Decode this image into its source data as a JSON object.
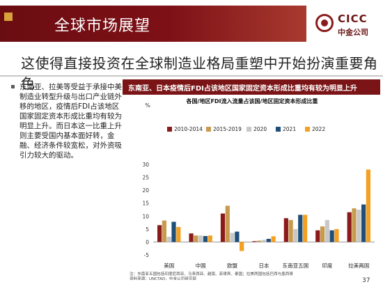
{
  "header": {
    "title": "全球市场展望",
    "logo_en": "CICC",
    "logo_cn": "中金公司"
  },
  "subtitle": "这使得直接投资在全球制造业格局重塑中开始扮演重要角色",
  "left_panel": {
    "text": "东南亚、拉美等受益于承接中美制造业转型升级与出口产业链外移的地区，疫情后FDI占该地区国家固定资本形成比重均有较为明显上升。而日本这一比重上升则主要受国内基本面好转，金融、经济条件较宽松，对外资吸引力较大的驱动。"
  },
  "chart_header": "东南亚、日本疫情后FDI占该地区国家固定资本形成比重均有较为明显上升",
  "chart_data": {
    "type": "bar",
    "title": "各国/地区FDI流入流量占该国/地区固定资本形成比重",
    "ylabel": "%",
    "ylim": [
      -5,
      30
    ],
    "yticks": [
      -5,
      0,
      5,
      10,
      15,
      20,
      25,
      30
    ],
    "categories": [
      "美国",
      "中国",
      "欧盟",
      "日本",
      "东南亚五国",
      "印度",
      "拉美两国"
    ],
    "series": [
      {
        "name": "2010-2014",
        "color": "#8b1a1a",
        "values": [
          6.5,
          3.3,
          11.0,
          0.3,
          9.2,
          4.5,
          11.5
        ]
      },
      {
        "name": "2015-2019",
        "color": "#c79a4d",
        "values": [
          8.3,
          2.5,
          14.0,
          0.5,
          8.5,
          6.0,
          13.0
        ]
      },
      {
        "name": "2020",
        "color": "#c8c8c8",
        "values": [
          2.0,
          2.5,
          3.5,
          0.8,
          5.0,
          8.5,
          12.5
        ]
      },
      {
        "name": "2021",
        "color": "#1f4e79",
        "values": [
          7.8,
          2.3,
          4.0,
          1.2,
          10.5,
          4.5,
          14.5
        ]
      },
      {
        "name": "2022",
        "color": "#f4a020",
        "values": [
          5.8,
          2.5,
          -3.5,
          2.2,
          10.5,
          5.0,
          28.0
        ]
      }
    ],
    "note": "注：东南亚五国包括印度尼西亚、马来西亚、越南、菲律宾、泰国；拉美两国包括巴西与墨西哥",
    "source": "资料来源：UNCTAD，中金公司研究部"
  },
  "page_number": "37"
}
